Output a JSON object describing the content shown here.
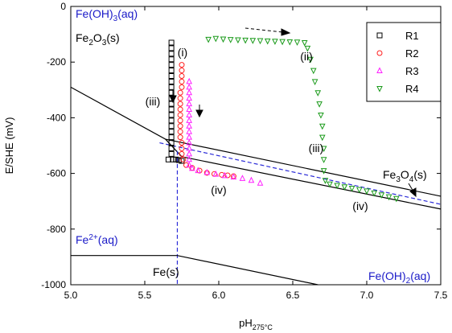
{
  "chart_data": {
    "type": "scatter",
    "ylabel": "E/SHE (mV)",
    "xlabel": "pH",
    "xlabel_sub": "275°C",
    "xlim": [
      5.0,
      7.5
    ],
    "xticks": [
      {
        "value": 5,
        "label": "5.0"
      },
      5.5,
      {
        "value": 6,
        "label": "6.0"
      },
      6.5,
      {
        "value": 7,
        "label": "7.0"
      },
      7.5
    ],
    "ylim": [
      -1000,
      0
    ],
    "yticks": [
      -1000,
      -800,
      -600,
      -400,
      -200,
      0
    ],
    "legend": "upper right",
    "series": [
      {
        "name": "R1",
        "color": "#000000",
        "marker": "square",
        "x": [
          5.68,
          5.68,
          5.68,
          5.68,
          5.68,
          5.68,
          5.68,
          5.68,
          5.68,
          5.68,
          5.68,
          5.68,
          5.68,
          5.68,
          5.68,
          5.68,
          5.68,
          5.68,
          5.68,
          5.68,
          5.68,
          5.66,
          5.69,
          5.71,
          5.73,
          5.75
        ],
        "values": [
          -130,
          -150,
          -170,
          -190,
          -210,
          -230,
          -250,
          -270,
          -290,
          -310,
          -330,
          -350,
          -370,
          -390,
          -410,
          -430,
          -450,
          -470,
          -490,
          -510,
          -530,
          -550,
          -550,
          -550,
          -552,
          -555
        ]
      },
      {
        "name": "R2",
        "color": "#ff2020",
        "marker": "circle",
        "x": [
          5.75,
          5.75,
          5.75,
          5.75,
          5.75,
          5.74,
          5.74,
          5.74,
          5.74,
          5.74,
          5.74,
          5.74,
          5.74,
          5.74,
          5.75,
          5.75,
          5.75,
          5.76,
          5.78,
          5.82,
          5.87,
          5.92,
          5.97,
          6.02,
          6.06,
          6.1
        ],
        "values": [
          -210,
          -230,
          -250,
          -270,
          -290,
          -310,
          -330,
          -350,
          -370,
          -390,
          -410,
          -430,
          -450,
          -470,
          -490,
          -510,
          -530,
          -550,
          -570,
          -580,
          -590,
          -598,
          -602,
          -605,
          -607,
          -610
        ]
      },
      {
        "name": "R3",
        "color": "#ff20ff",
        "marker": "triangle-up",
        "x": [
          5.8,
          5.8,
          5.8,
          5.8,
          5.8,
          5.8,
          5.8,
          5.8,
          5.8,
          5.8,
          5.8,
          5.8,
          5.8,
          5.8,
          5.8,
          5.8,
          5.82,
          5.86,
          5.92,
          5.98,
          6.04,
          6.1,
          6.16,
          6.22,
          6.28
        ],
        "values": [
          -270,
          -290,
          -310,
          -330,
          -350,
          -370,
          -390,
          -410,
          -430,
          -450,
          -470,
          -490,
          -510,
          -530,
          -550,
          -570,
          -582,
          -590,
          -597,
          -603,
          -608,
          -613,
          -618,
          -625,
          -635
        ]
      },
      {
        "name": "R4",
        "color": "#1a9a1a",
        "marker": "triangle-down",
        "x": [
          5.93,
          5.98,
          6.03,
          6.08,
          6.13,
          6.18,
          6.23,
          6.28,
          6.33,
          6.38,
          6.43,
          6.48,
          6.53,
          6.58,
          6.6,
          6.62,
          6.64,
          6.65,
          6.67,
          6.68,
          6.69,
          6.7,
          6.7,
          6.71,
          6.71,
          6.71,
          6.72,
          6.75,
          6.8,
          6.85,
          6.9,
          6.95,
          7.0,
          7.05,
          7.1,
          7.15,
          7.2
        ],
        "values": [
          -118,
          -115,
          -117,
          -119,
          -120,
          -121,
          -122,
          -123,
          -124,
          -125,
          -126,
          -127,
          -128,
          -130,
          -150,
          -190,
          -230,
          -270,
          -310,
          -350,
          -390,
          -430,
          -470,
          -510,
          -550,
          -590,
          -625,
          -638,
          -643,
          -648,
          -653,
          -658,
          -663,
          -670,
          -677,
          -684,
          -690
        ]
      }
    ],
    "boundaries": [
      {
        "color": "#000000",
        "style": "solid",
        "x": [
          5.0,
          5.64,
          7.5
        ],
        "values": [
          -290,
          -477,
          -682
        ]
      },
      {
        "color": "#000000",
        "style": "solid",
        "x": [
          5.64,
          5.75,
          7.5
        ],
        "values": [
          -477,
          -540,
          -728
        ]
      },
      {
        "color": "#2a2ad8",
        "style": "dashed",
        "x": [
          5.6,
          7.5
        ],
        "values": [
          -490,
          -711
        ]
      },
      {
        "color": "#2a2ad8",
        "style": "dashed",
        "x": [
          5.72,
          5.72
        ],
        "values": [
          -520,
          -1000
        ]
      },
      {
        "color": "#000000",
        "style": "solid",
        "x": [
          5.0,
          5.72,
          6.67
        ],
        "values": [
          -895,
          -895,
          -1000
        ]
      }
    ],
    "annotations": [
      {
        "color": "#1a1ac8",
        "parts": [
          {
            "text": "Fe(OH)"
          },
          {
            "text": "3",
            "sub": true
          },
          {
            "text": "(aq)"
          }
        ]
      },
      {
        "color": "#000000",
        "parts": [
          {
            "text": "Fe"
          },
          {
            "text": "2",
            "sub": true
          },
          {
            "text": "O"
          },
          {
            "text": "3",
            "sub": true
          },
          {
            "text": "(s)"
          }
        ]
      },
      {
        "color": "#000000",
        "parts": [
          {
            "text": "(i)"
          }
        ]
      },
      {
        "color": "#000000",
        "parts": [
          {
            "text": "(ii)"
          }
        ]
      },
      {
        "color": "#000000",
        "parts": [
          {
            "text": "(iii)"
          }
        ]
      },
      {
        "color": "#000000",
        "parts": [
          {
            "text": "(iii)"
          }
        ]
      },
      {
        "color": "#000000",
        "parts": [
          {
            "text": "(iv)"
          }
        ]
      },
      {
        "color": "#000000",
        "parts": [
          {
            "text": "(iv)"
          }
        ]
      },
      {
        "color": "#000000",
        "parts": [
          {
            "text": "Fe"
          },
          {
            "text": "3",
            "sub": true
          },
          {
            "text": "O"
          },
          {
            "text": "4",
            "sub": true
          },
          {
            "text": "(s)"
          }
        ]
      },
      {
        "color": "#1a1ac8",
        "parts": [
          {
            "text": "Fe"
          },
          {
            "text": "2+",
            "sup": true
          },
          {
            "text": "(aq)"
          }
        ]
      },
      {
        "color": "#000000",
        "parts": [
          {
            "text": "Fe(s)"
          }
        ]
      },
      {
        "color": "#1a1ac8",
        "parts": [
          {
            "text": "Fe(OH)"
          },
          {
            "text": "2",
            "sub": true
          },
          {
            "text": "(aq)"
          }
        ]
      }
    ]
  }
}
